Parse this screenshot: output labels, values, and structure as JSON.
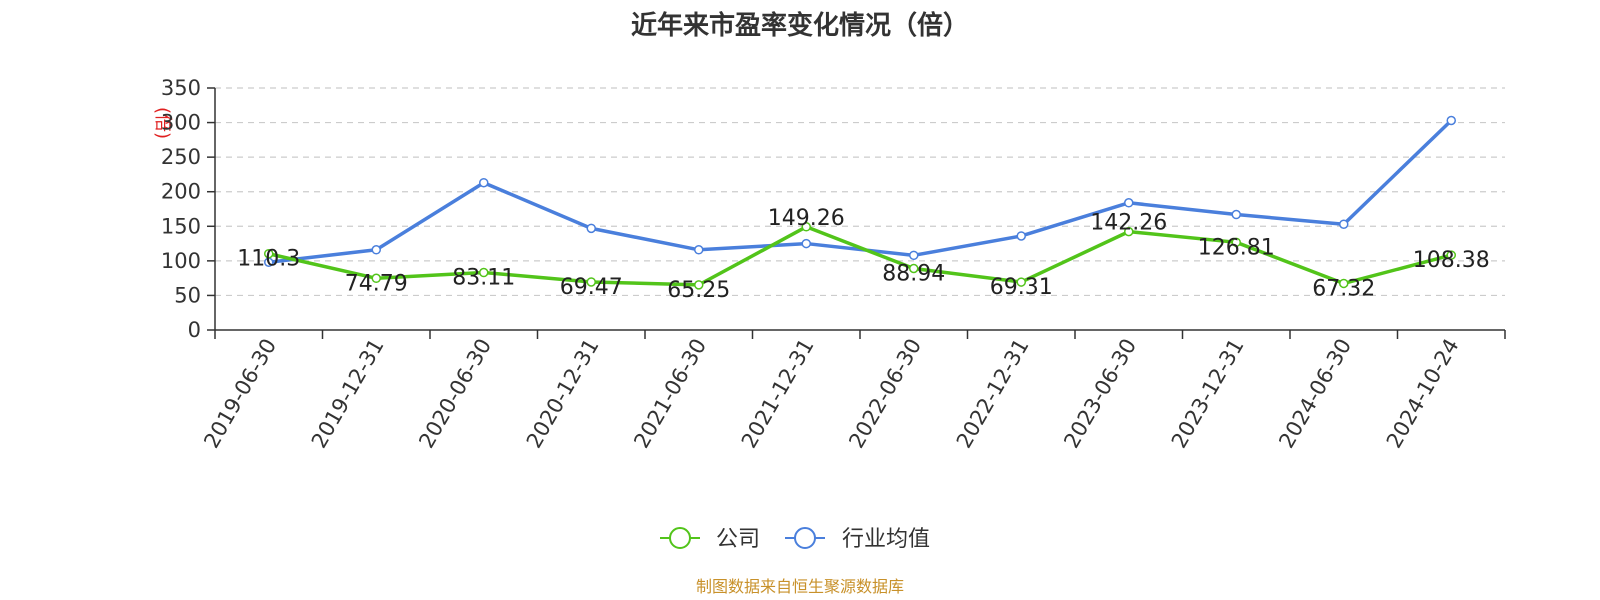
{
  "chart_data": {
    "type": "line",
    "title": "近年来市盈率变化情况（倍）",
    "ylabel": "(倍)",
    "xlabel": "",
    "categories": [
      "2019-06-30",
      "2019-12-31",
      "2020-06-30",
      "2020-12-31",
      "2021-06-30",
      "2021-12-31",
      "2022-06-30",
      "2022-12-31",
      "2023-06-30",
      "2023-12-31",
      "2024-06-30",
      "2024-10-24"
    ],
    "ylim": [
      0,
      350
    ],
    "yticks": [
      "0",
      "50",
      "100",
      "150",
      "200",
      "250",
      "300",
      "350"
    ],
    "grid": true,
    "legend_position": "bottom",
    "series": [
      {
        "name": "公司",
        "color": "#52c41a",
        "values": [
          110.3,
          74.79,
          83.11,
          69.47,
          65.25,
          149.26,
          88.94,
          69.31,
          142.26,
          126.81,
          67.32,
          108.38
        ],
        "labels": [
          "110.3",
          "74.79",
          "83.11",
          "69.47",
          "65.25",
          "149.26",
          "88.94",
          "69.31",
          "142.26",
          "126.81",
          "67.32",
          "108.38"
        ]
      },
      {
        "name": "行业均值",
        "color": "#4a7fdc",
        "values": [
          98,
          116,
          213,
          147,
          116,
          125,
          108,
          136,
          184,
          167,
          153,
          303
        ]
      }
    ],
    "source_note": "制图数据来自恒生聚源数据库"
  }
}
